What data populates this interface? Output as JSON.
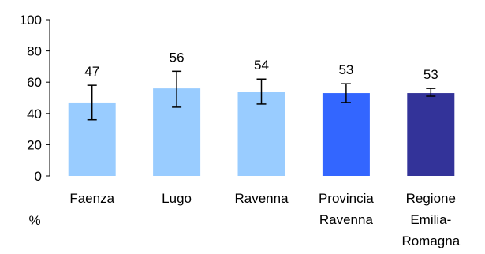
{
  "chart_data": {
    "type": "bar",
    "title": "",
    "xlabel": "",
    "ylabel": "%",
    "ylim": [
      0,
      100
    ],
    "yticks": [
      0,
      20,
      40,
      60,
      80,
      100
    ],
    "grid": false,
    "legend": "none",
    "categories": [
      [
        "Faenza"
      ],
      [
        "Lugo"
      ],
      [
        "Ravenna"
      ],
      [
        "Provincia",
        "Ravenna"
      ],
      [
        "Regione",
        "Emilia-",
        "Romagna"
      ]
    ],
    "values": [
      47,
      56,
      54,
      53,
      53
    ],
    "data_labels": [
      "47",
      "56",
      "54",
      "53",
      "53"
    ],
    "error_low": [
      36,
      44,
      46,
      47,
      51
    ],
    "error_high": [
      58,
      67,
      62,
      59,
      56
    ],
    "colors": [
      "#99ccff",
      "#99ccff",
      "#99ccff",
      "#3366ff",
      "#333399"
    ]
  }
}
